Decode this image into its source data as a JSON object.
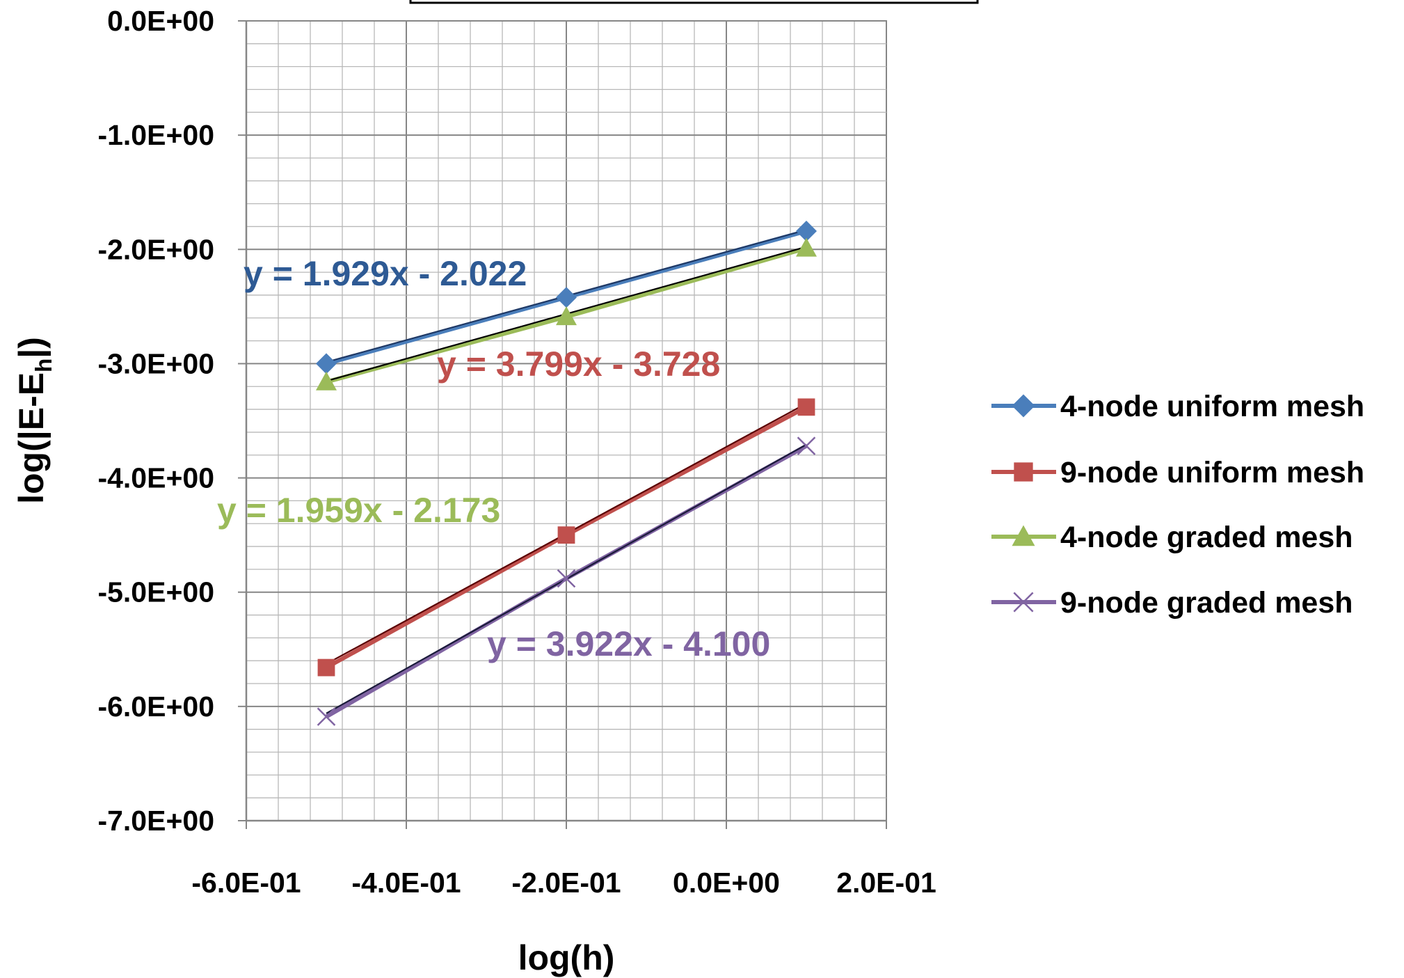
{
  "chart_data": {
    "type": "line",
    "title": "",
    "xlabel": "log(h)",
    "ylabel": {
      "main": "log(|E-E",
      "sub": "h",
      "close": "|)"
    },
    "xlim": [
      -0.6,
      0.2
    ],
    "ylim": [
      -7.0,
      0.0
    ],
    "x_ticks": [
      {
        "value": -0.6,
        "label": "-6.0E-01"
      },
      {
        "value": -0.4,
        "label": "-4.0E-01"
      },
      {
        "value": -0.2,
        "label": "-2.0E-01"
      },
      {
        "value": 0.0,
        "label": "0.0E+00"
      },
      {
        "value": 0.2,
        "label": "2.0E-01"
      }
    ],
    "y_ticks": [
      {
        "value": 0.0,
        "label": "0.0E+00"
      },
      {
        "value": -1.0,
        "label": "-1.0E+00"
      },
      {
        "value": -2.0,
        "label": "-2.0E+00"
      },
      {
        "value": -3.0,
        "label": "-3.0E+00"
      },
      {
        "value": -4.0,
        "label": "-4.0E+00"
      },
      {
        "value": -5.0,
        "label": "-5.0E+00"
      },
      {
        "value": -6.0,
        "label": "-6.0E+00"
      },
      {
        "value": -7.0,
        "label": "-7.0E+00"
      }
    ],
    "grid": true,
    "legend_position": "right",
    "series": [
      {
        "name": "4-node uniform mesh",
        "color": "#4a7ebb",
        "marker": "diamond",
        "x": [
          -0.5,
          -0.2,
          0.1
        ],
        "y": [
          -3.0,
          -2.42,
          -1.84
        ],
        "trendline": {
          "slope": 1.929,
          "intercept": -2.022,
          "color": "#1f3864"
        },
        "equation": "y = 1.929x - 2.022",
        "equation_color": "#2e5a94"
      },
      {
        "name": "9-node uniform mesh",
        "color": "#c0504d",
        "marker": "square",
        "x": [
          -0.5,
          -0.2,
          0.1
        ],
        "y": [
          -5.66,
          -4.5,
          -3.38
        ],
        "trendline": {
          "slope": 3.799,
          "intercept": -3.728,
          "color": "#5a0000"
        },
        "equation": "y = 3.799x - 3.728",
        "equation_color": "#c0504d"
      },
      {
        "name": "4-node graded mesh",
        "color": "#9bbb59",
        "marker": "triangle",
        "x": [
          -0.5,
          -0.2,
          0.1
        ],
        "y": [
          -3.16,
          -2.59,
          -1.99
        ],
        "trendline": {
          "slope": 1.959,
          "intercept": -2.173,
          "color": "#000000"
        },
        "equation": "y = 1.959x - 2.173",
        "equation_color": "#9bbb59"
      },
      {
        "name": "9-node graded mesh",
        "color": "#8064a2",
        "marker": "x",
        "x": [
          -0.5,
          -0.2,
          0.1
        ],
        "y": [
          -6.09,
          -4.88,
          -3.72
        ],
        "trendline": {
          "slope": 3.922,
          "intercept": -4.1,
          "color": "#1a1a3a"
        },
        "equation": "y = 3.922x - 4.100",
        "equation_color": "#8064a2"
      }
    ]
  }
}
